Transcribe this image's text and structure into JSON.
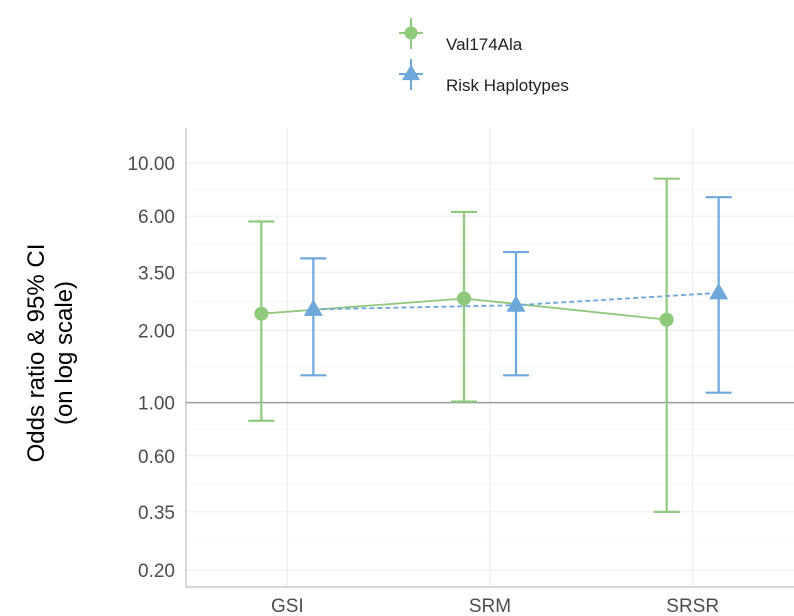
{
  "chart_data": {
    "type": "scatter",
    "title": "",
    "xlabel": "",
    "ylabel": [
      "Odds ratio & 95% CI",
      "(on log scale)"
    ],
    "y_scale": "log",
    "ylim": [
      0.17,
      14
    ],
    "yticks": [
      0.2,
      0.35,
      0.6,
      1.0,
      2.0,
      3.5,
      6.0,
      10.0
    ],
    "ytick_labels": [
      "0.20",
      "0.35",
      "0.60",
      "1.00",
      "2.00",
      "3.50",
      "6.00",
      "10.00"
    ],
    "reference_line": 1.0,
    "categories": [
      "GSI",
      "SRM",
      "SRSR"
    ],
    "grid": true,
    "legend_position": "top",
    "series": [
      {
        "name": "Val174Ala",
        "color": "#8fc97b",
        "marker": "circle",
        "line": "solid",
        "estimate": [
          2.35,
          2.72,
          2.22
        ],
        "ci_low": [
          0.84,
          1.01,
          0.35
        ],
        "ci_high": [
          5.7,
          6.25,
          8.6
        ]
      },
      {
        "name": "Risk Haplotypes",
        "color": "#6ea8db",
        "marker": "triangle",
        "line": "dashed",
        "estimate": [
          2.45,
          2.55,
          2.87
        ],
        "ci_low": [
          1.3,
          1.3,
          1.1
        ],
        "ci_high": [
          4.0,
          4.25,
          7.2
        ]
      }
    ]
  }
}
